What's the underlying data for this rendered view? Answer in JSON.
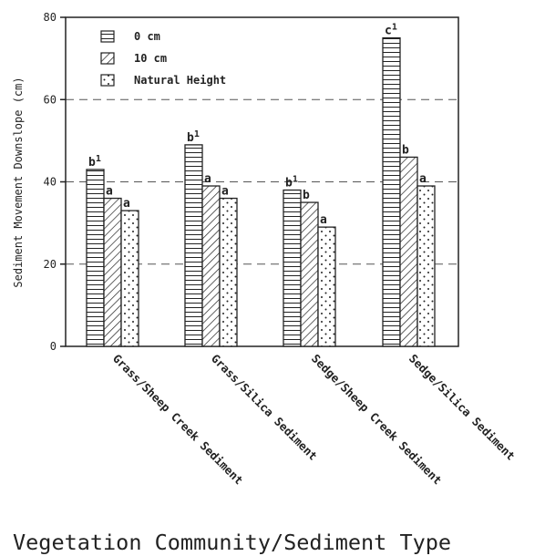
{
  "chart_data": {
    "type": "bar",
    "categories": [
      "Grass/Sheep Creek Sediment",
      "Grass/Silica Sediment",
      "Sedge/Sheep Creek Sediment",
      "Sedge/Silica Sediment"
    ],
    "series": [
      {
        "name": "0 cm",
        "values": [
          43,
          49,
          38,
          75
        ],
        "labels": [
          "b1",
          "b1",
          "b1",
          "c1"
        ],
        "pattern": "horizontal-lines"
      },
      {
        "name": "10 cm",
        "values": [
          36,
          39,
          35,
          46
        ],
        "labels": [
          "a",
          "a",
          "b",
          "b"
        ],
        "pattern": "diagonal-hatch"
      },
      {
        "name": "Natural Height",
        "values": [
          33,
          36,
          29,
          39
        ],
        "labels": [
          "a",
          "a",
          "a",
          "a"
        ],
        "pattern": "dots"
      }
    ],
    "title": "",
    "xlabel": "Vegetation Community/Sediment Type",
    "ylabel": "Sediment Movement Downslope (cm)",
    "ylim": [
      0,
      80
    ],
    "yticks": [
      0,
      20,
      40,
      60,
      80
    ],
    "grid": "dashed horizontal at 20, 40, 60",
    "legend_position": "top-left"
  }
}
